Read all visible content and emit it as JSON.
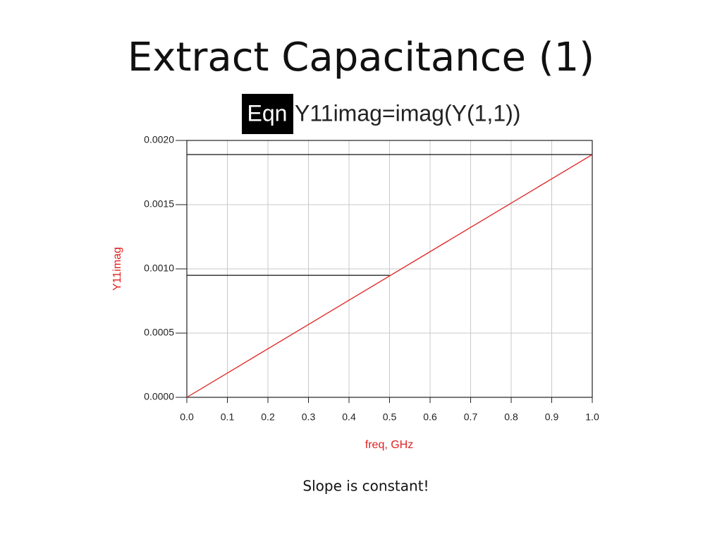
{
  "title": "Extract Capacitance (1)",
  "equation": {
    "badge": "Eqn",
    "text": "Y11imag=imag(Y(1,1))"
  },
  "caption": "Slope is constant!",
  "chart_data": {
    "type": "line",
    "x_label": "freq, GHz",
    "y_label": "Y11imag",
    "x": [
      0,
      1
    ],
    "series": [
      {
        "name": "Y11imag",
        "color": "#e02020",
        "values": [
          0,
          0.00189
        ]
      }
    ],
    "guides": [
      {
        "y": 0.00189,
        "x": [
          0,
          1
        ]
      },
      {
        "y": 0.00095,
        "x": [
          0,
          0.5
        ]
      }
    ],
    "xlim": [
      0,
      1
    ],
    "xticks": [
      {
        "value": 0,
        "label": "0.0"
      },
      0.1,
      0.2,
      0.3,
      0.4,
      0.5,
      0.6,
      0.7,
      0.8,
      0.9,
      {
        "value": 1,
        "label": "1.0"
      }
    ],
    "ylim": [
      0,
      0.002
    ],
    "yticks": [
      {
        "value": 0,
        "label": "0.0000"
      },
      {
        "value": 0.0005,
        "label": "0.0005"
      },
      {
        "value": 0.001,
        "label": "0.0010"
      },
      {
        "value": 0.0015,
        "label": "0.0015"
      },
      {
        "value": 0.002,
        "label": "0.0020"
      }
    ],
    "grid": true
  }
}
